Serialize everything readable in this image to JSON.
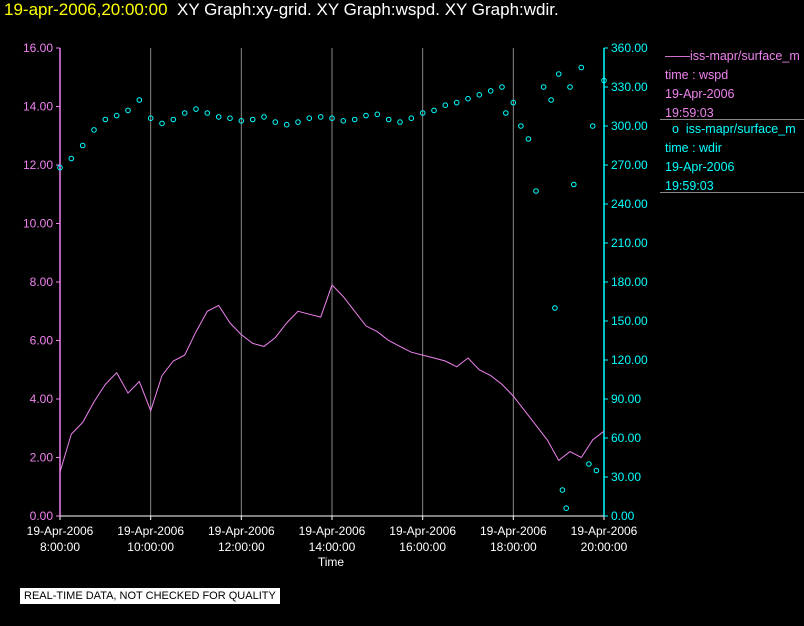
{
  "header": {
    "timestamp": "19-apr-2006,20:00:00",
    "graphs": "XY Graph:xy-grid.  XY Graph:wspd.  XY Graph:wdir."
  },
  "colors": {
    "wspd": "#ee82ee",
    "wdir": "#00ffff",
    "timestamp": "#ffff00",
    "axis_left": "#ee82ee",
    "axis_right": "#00ffff"
  },
  "legend": [
    {
      "name": "iss-mapr/surface_m",
      "marker": "——",
      "field": "time : wspd",
      "date": "19-Apr-2006",
      "time": "19:59:03"
    },
    {
      "name": "iss-mapr/surface_m",
      "marker": "o",
      "field": "time : wdir",
      "date": "19-Apr-2006",
      "time": "19:59:03"
    }
  ],
  "notice": "REAL-TIME DATA, NOT CHECKED FOR QUALITY",
  "chart_data": {
    "type": "line",
    "xlabel": "Time",
    "x_ticks": [
      {
        "date": "19-Apr-2006",
        "time": "8:00:00"
      },
      {
        "date": "19-Apr-2006",
        "time": "10:00:00"
      },
      {
        "date": "19-Apr-2006",
        "time": "12:00:00"
      },
      {
        "date": "19-Apr-2006",
        "time": "14:00:00"
      },
      {
        "date": "19-Apr-2006",
        "time": "16:00:00"
      },
      {
        "date": "19-Apr-2006",
        "time": "18:00:00"
      },
      {
        "date": "19-Apr-2006",
        "time": "20:00:00"
      }
    ],
    "xlim": [
      "2006-04-19 08:00",
      "2006-04-19 20:00"
    ],
    "y_left": {
      "ticks": [
        "0.00",
        "2.00",
        "4.00",
        "6.00",
        "8.00",
        "10.00",
        "12.00",
        "14.00",
        "16.00"
      ],
      "ylim": [
        0,
        16
      ]
    },
    "y_right": {
      "ticks": [
        "0.00",
        "30.00",
        "60.00",
        "90.00",
        "120.00",
        "150.00",
        "180.00",
        "210.00",
        "240.00",
        "270.00",
        "300.00",
        "330.00",
        "360.00"
      ],
      "ylim": [
        0,
        360
      ]
    },
    "grid": "vertical",
    "series": [
      {
        "name": "iss-mapr/surface_m time : wspd",
        "style": "line",
        "axis": "left",
        "x": [
          "08:00",
          "08:15",
          "08:30",
          "08:45",
          "09:00",
          "09:15",
          "09:30",
          "09:45",
          "10:00",
          "10:15",
          "10:30",
          "10:45",
          "11:00",
          "11:15",
          "11:30",
          "11:45",
          "12:00",
          "12:15",
          "12:30",
          "12:45",
          "13:00",
          "13:15",
          "13:30",
          "13:45",
          "14:00",
          "14:15",
          "14:30",
          "14:45",
          "15:00",
          "15:15",
          "15:30",
          "15:45",
          "16:00",
          "16:15",
          "16:30",
          "16:45",
          "17:00",
          "17:15",
          "17:30",
          "17:45",
          "18:00",
          "18:15",
          "18:30",
          "18:45",
          "19:00",
          "19:15",
          "19:30",
          "19:45",
          "20:00"
        ],
        "y": [
          1.5,
          2.8,
          3.2,
          3.9,
          4.5,
          4.9,
          4.2,
          4.6,
          3.6,
          4.8,
          5.3,
          5.5,
          6.3,
          7.0,
          7.2,
          6.6,
          6.2,
          5.9,
          5.8,
          6.1,
          6.6,
          7.0,
          6.9,
          6.8,
          7.9,
          7.5,
          7.0,
          6.5,
          6.3,
          6.0,
          5.8,
          5.6,
          5.5,
          5.4,
          5.3,
          5.1,
          5.4,
          5.0,
          4.8,
          4.5,
          4.1,
          3.6,
          3.1,
          2.6,
          1.9,
          2.2,
          2.0,
          2.6,
          2.9
        ]
      },
      {
        "name": "iss-mapr/surface_m time : wdir",
        "style": "scatter",
        "axis": "right",
        "x": [
          "08:00",
          "08:15",
          "08:30",
          "08:45",
          "09:00",
          "09:15",
          "09:30",
          "09:45",
          "10:00",
          "10:15",
          "10:30",
          "10:45",
          "11:00",
          "11:15",
          "11:30",
          "11:45",
          "12:00",
          "12:15",
          "12:30",
          "12:45",
          "13:00",
          "13:15",
          "13:30",
          "13:45",
          "14:00",
          "14:15",
          "14:30",
          "14:45",
          "15:00",
          "15:15",
          "15:30",
          "15:45",
          "16:00",
          "16:15",
          "16:30",
          "16:45",
          "17:00",
          "17:15",
          "17:30",
          "17:45",
          "18:00",
          "18:10",
          "18:20",
          "18:40",
          "18:50",
          "19:00",
          "19:15",
          "19:30",
          "19:45",
          "20:00",
          "18:30",
          "18:55",
          "19:10",
          "19:05",
          "19:40",
          "19:50",
          "17:50",
          "19:20"
        ],
        "y": [
          268,
          275,
          285,
          297,
          305,
          308,
          312,
          320,
          306,
          302,
          305,
          310,
          313,
          310,
          307,
          306,
          304,
          305,
          307,
          303,
          301,
          303,
          306,
          307,
          306,
          304,
          305,
          308,
          309,
          305,
          303,
          306,
          310,
          312,
          316,
          318,
          321,
          324,
          327,
          330,
          318,
          300,
          290,
          330,
          320,
          340,
          330,
          345,
          300,
          335,
          250,
          160,
          6,
          20,
          40,
          35,
          310,
          255
        ]
      }
    ]
  }
}
